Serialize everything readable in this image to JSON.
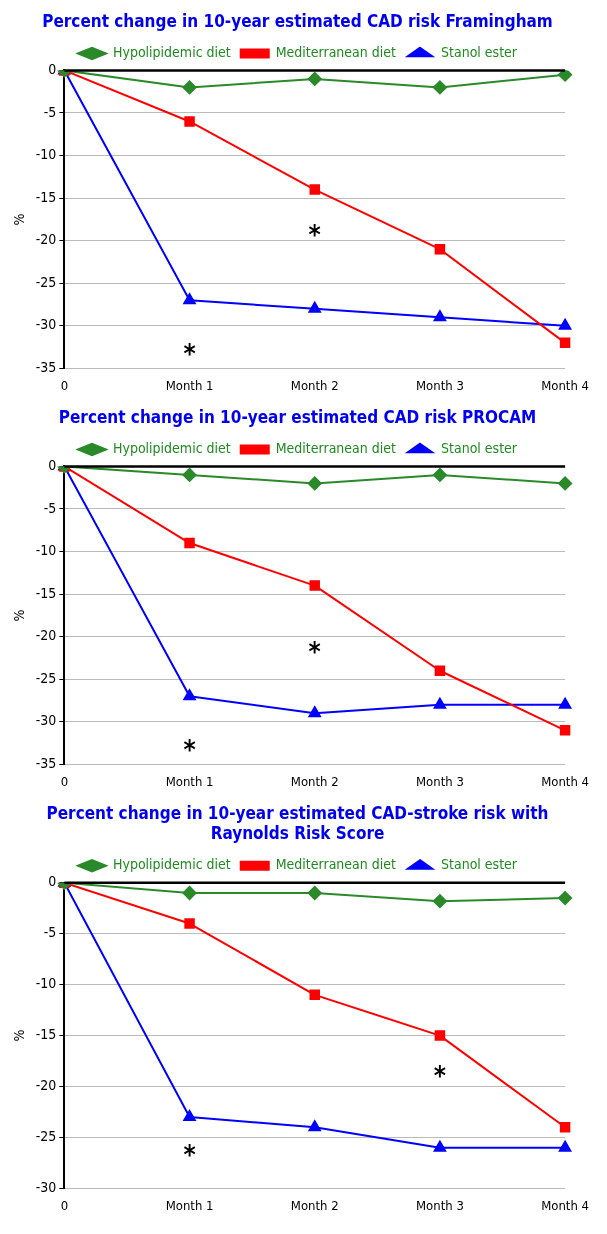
{
  "chart_data": [
    {
      "type": "line",
      "title": "Percent change in 10-year estimated CAD risk Framingham",
      "ylabel": "%",
      "categories": [
        "0",
        "Month 1",
        "Month 2",
        "Month 3",
        "Month 4"
      ],
      "series": [
        {
          "name": "Hypolipidemic diet",
          "color": "#2a8a2a",
          "marker": "diamond",
          "values": [
            0,
            -2,
            -1,
            -2,
            -0.5
          ]
        },
        {
          "name": "Mediterranean diet",
          "color": "#ff0000",
          "marker": "square",
          "values": [
            0,
            -6,
            -14,
            -21,
            -32
          ]
        },
        {
          "name": "Stanol ester",
          "color": "#0000ff",
          "marker": "triangle",
          "values": [
            0,
            -27,
            -28,
            -29,
            -30
          ]
        }
      ],
      "ylim": [
        -35,
        0
      ],
      "yticks": [
        -35,
        -30,
        -25,
        -20,
        -15,
        -10,
        -5,
        0
      ],
      "grid": "y",
      "legend": "top",
      "annotations": [
        "*",
        "*"
      ]
    },
    {
      "type": "line",
      "title": "Percent change in 10-year estimated CAD risk PROCAM",
      "ylabel": "%",
      "categories": [
        "0",
        "Month 1",
        "Month 2",
        "Month 3",
        "Month 4"
      ],
      "series": [
        {
          "name": "Hypolipidemic diet",
          "color": "#2a8a2a",
          "marker": "diamond",
          "values": [
            0,
            -1,
            -2,
            -1,
            -2
          ]
        },
        {
          "name": "Mediterranean diet",
          "color": "#ff0000",
          "marker": "square",
          "values": [
            0,
            -9,
            -14,
            -24,
            -31
          ]
        },
        {
          "name": "Stanol ester",
          "color": "#0000ff",
          "marker": "triangle",
          "values": [
            0,
            -27,
            -29,
            -28,
            -28
          ]
        }
      ],
      "ylim": [
        -35,
        0
      ],
      "yticks": [
        -35,
        -30,
        -25,
        -20,
        -15,
        -10,
        -5,
        0
      ],
      "grid": "y",
      "legend": "top",
      "annotations": [
        "*",
        "*"
      ]
    },
    {
      "type": "line",
      "title": "Percent change in 10-year estimated CAD-stroke risk with Raynolds Risk Score",
      "ylabel": "%",
      "categories": [
        "0",
        "Month 1",
        "Month 2",
        "Month 3",
        "Month 4"
      ],
      "series": [
        {
          "name": "Hypolipidemic diet",
          "color": "#2a8a2a",
          "marker": "diamond",
          "values": [
            0,
            -1,
            -1,
            -1.8,
            -1.5
          ]
        },
        {
          "name": "Mediterranean diet",
          "color": "#ff0000",
          "marker": "square",
          "values": [
            0,
            -4,
            -11,
            -15,
            -24
          ]
        },
        {
          "name": "Stanol ester",
          "color": "#0000ff",
          "marker": "triangle",
          "values": [
            0,
            -23,
            -24,
            -26,
            -26
          ]
        }
      ],
      "ylim": [
        -30,
        0
      ],
      "yticks": [
        -30,
        -25,
        -20,
        -15,
        -10,
        -5,
        0
      ],
      "grid": "y",
      "legend": "top",
      "annotations": [
        "*",
        "*"
      ]
    }
  ]
}
